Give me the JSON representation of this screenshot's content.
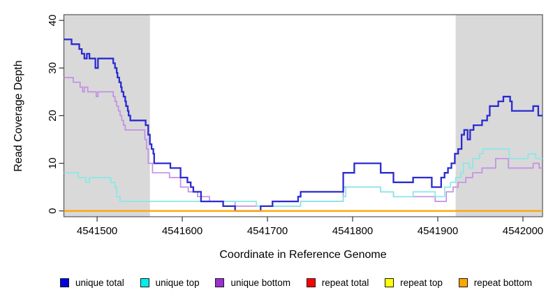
{
  "chart_data": {
    "type": "line",
    "style": "step-after",
    "title": "",
    "xlabel": "Coordinate in Reference Genome",
    "ylabel": "Read Coverage Depth",
    "x_domain": [
      4541461,
      4542023
    ],
    "y_domain": [
      0,
      41.2
    ],
    "x_ticks": [
      4541500,
      4541600,
      4541700,
      4541800,
      4541900,
      4542000
    ],
    "x_tick_labels": [
      "4541500",
      "4541600",
      "4541700",
      "4541800",
      "4541900",
      "4542000"
    ],
    "y_ticks": [
      0,
      10,
      20,
      30,
      40
    ],
    "y_tick_labels": [
      "0",
      "10",
      "20",
      "30",
      "40"
    ],
    "grid": false,
    "legend_position": "bottom",
    "shade_color": "#d9d9d9",
    "shaded_regions": [
      {
        "from": 4541461,
        "to": 4541562
      },
      {
        "from": 4541921,
        "to": 4542023
      }
    ],
    "series": [
      {
        "name": "unique total",
        "line_color": "#2b2bd0",
        "legend_color": "#0000dd",
        "points": [
          [
            4541461,
            36
          ],
          [
            4541470,
            35
          ],
          [
            4541479,
            34
          ],
          [
            4541482,
            33
          ],
          [
            4541485,
            32
          ],
          [
            4541488,
            33
          ],
          [
            4541491,
            32
          ],
          [
            4541498,
            30
          ],
          [
            4541501,
            32
          ],
          [
            4541519,
            31
          ],
          [
            4541521,
            30
          ],
          [
            4541523,
            29
          ],
          [
            4541524,
            28
          ],
          [
            4541526,
            27
          ],
          [
            4541528,
            26
          ],
          [
            4541529,
            25
          ],
          [
            4541531,
            24
          ],
          [
            4541533,
            23
          ],
          [
            4541534,
            22
          ],
          [
            4541536,
            21
          ],
          [
            4541537,
            20
          ],
          [
            4541539,
            19
          ],
          [
            4541557,
            18
          ],
          [
            4541560,
            16
          ],
          [
            4541562,
            14
          ],
          [
            4541564,
            13
          ],
          [
            4541566,
            12
          ],
          [
            4541567,
            10
          ],
          [
            4541586,
            9
          ],
          [
            4541598,
            7
          ],
          [
            4541606,
            6
          ],
          [
            4541610,
            5
          ],
          [
            4541613,
            4
          ],
          [
            4541622,
            2
          ],
          [
            4541648,
            1
          ],
          [
            4541662,
            0
          ],
          [
            4541692,
            1
          ],
          [
            4541706,
            2
          ],
          [
            4541736,
            3
          ],
          [
            4541739,
            4
          ],
          [
            4541789,
            8
          ],
          [
            4541802,
            10
          ],
          [
            4541833,
            8
          ],
          [
            4541848,
            6
          ],
          [
            4541871,
            7
          ],
          [
            4541893,
            5
          ],
          [
            4541904,
            7
          ],
          [
            4541908,
            8
          ],
          [
            4541912,
            9
          ],
          [
            4541916,
            10
          ],
          [
            4541920,
            12
          ],
          [
            4541924,
            13
          ],
          [
            4541928,
            16
          ],
          [
            4541931,
            17
          ],
          [
            4541935,
            15
          ],
          [
            4541938,
            17
          ],
          [
            4541942,
            18
          ],
          [
            4541952,
            19
          ],
          [
            4541958,
            20
          ],
          [
            4541961,
            22
          ],
          [
            4541971,
            23
          ],
          [
            4541977,
            24
          ],
          [
            4541985,
            23
          ],
          [
            4541987,
            21
          ],
          [
            4542012,
            22
          ],
          [
            4542018,
            20
          ]
        ]
      },
      {
        "name": "unique top",
        "line_color": "#87e8e8",
        "legend_color": "#00eeee",
        "points": [
          [
            4541461,
            8
          ],
          [
            4541478,
            7
          ],
          [
            4541487,
            6
          ],
          [
            4541491,
            7
          ],
          [
            4541516,
            6
          ],
          [
            4541521,
            5
          ],
          [
            4541523,
            3
          ],
          [
            4541527,
            2
          ],
          [
            4541687,
            1
          ],
          [
            4541739,
            2
          ],
          [
            4541789,
            3
          ],
          [
            4541792,
            5
          ],
          [
            4541833,
            4
          ],
          [
            4541848,
            3
          ],
          [
            4541871,
            4
          ],
          [
            4541897,
            3
          ],
          [
            4541908,
            5
          ],
          [
            4541915,
            6
          ],
          [
            4541921,
            7
          ],
          [
            4541927,
            8
          ],
          [
            4541930,
            10
          ],
          [
            4541937,
            9
          ],
          [
            4541941,
            11
          ],
          [
            4541949,
            12
          ],
          [
            4541953,
            13
          ],
          [
            4541984,
            11
          ],
          [
            4542006,
            12
          ],
          [
            4542015,
            11
          ]
        ]
      },
      {
        "name": "unique bottom",
        "line_color": "#c48fe4",
        "legend_color": "#9b30d0",
        "points": [
          [
            4541461,
            28
          ],
          [
            4541472,
            27
          ],
          [
            4541480,
            26
          ],
          [
            4541483,
            25
          ],
          [
            4541485,
            26
          ],
          [
            4541489,
            25
          ],
          [
            4541499,
            24
          ],
          [
            4541501,
            25
          ],
          [
            4541519,
            24
          ],
          [
            4541521,
            23
          ],
          [
            4541523,
            22
          ],
          [
            4541525,
            21
          ],
          [
            4541527,
            20
          ],
          [
            4541529,
            19
          ],
          [
            4541531,
            18
          ],
          [
            4541533,
            17
          ],
          [
            4541556,
            15
          ],
          [
            4541558,
            13
          ],
          [
            4541560,
            10
          ],
          [
            4541565,
            8
          ],
          [
            4541585,
            7
          ],
          [
            4541598,
            5
          ],
          [
            4541607,
            4
          ],
          [
            4541618,
            3
          ],
          [
            4541632,
            2
          ],
          [
            4541662,
            1
          ],
          [
            4541739,
            2
          ],
          [
            4541789,
            5
          ],
          [
            4541833,
            4
          ],
          [
            4541848,
            3
          ],
          [
            4541897,
            2
          ],
          [
            4541910,
            4
          ],
          [
            4541918,
            5
          ],
          [
            4541924,
            6
          ],
          [
            4541933,
            7
          ],
          [
            4541941,
            8
          ],
          [
            4541952,
            9
          ],
          [
            4541968,
            11
          ],
          [
            4541983,
            9
          ],
          [
            4542012,
            10
          ],
          [
            4542019,
            9
          ]
        ]
      },
      {
        "name": "repeat total",
        "line_color": "#ee0000",
        "legend_color": "#ff0000",
        "points": [
          [
            4541461,
            0
          ]
        ]
      },
      {
        "name": "repeat top",
        "line_color": "#ffff00",
        "legend_color": "#ffff00",
        "points": [
          [
            4541461,
            0
          ]
        ]
      },
      {
        "name": "repeat bottom",
        "line_color": "#ffa500",
        "legend_color": "#ffa500",
        "points": [
          [
            4541461,
            0
          ]
        ]
      }
    ]
  }
}
